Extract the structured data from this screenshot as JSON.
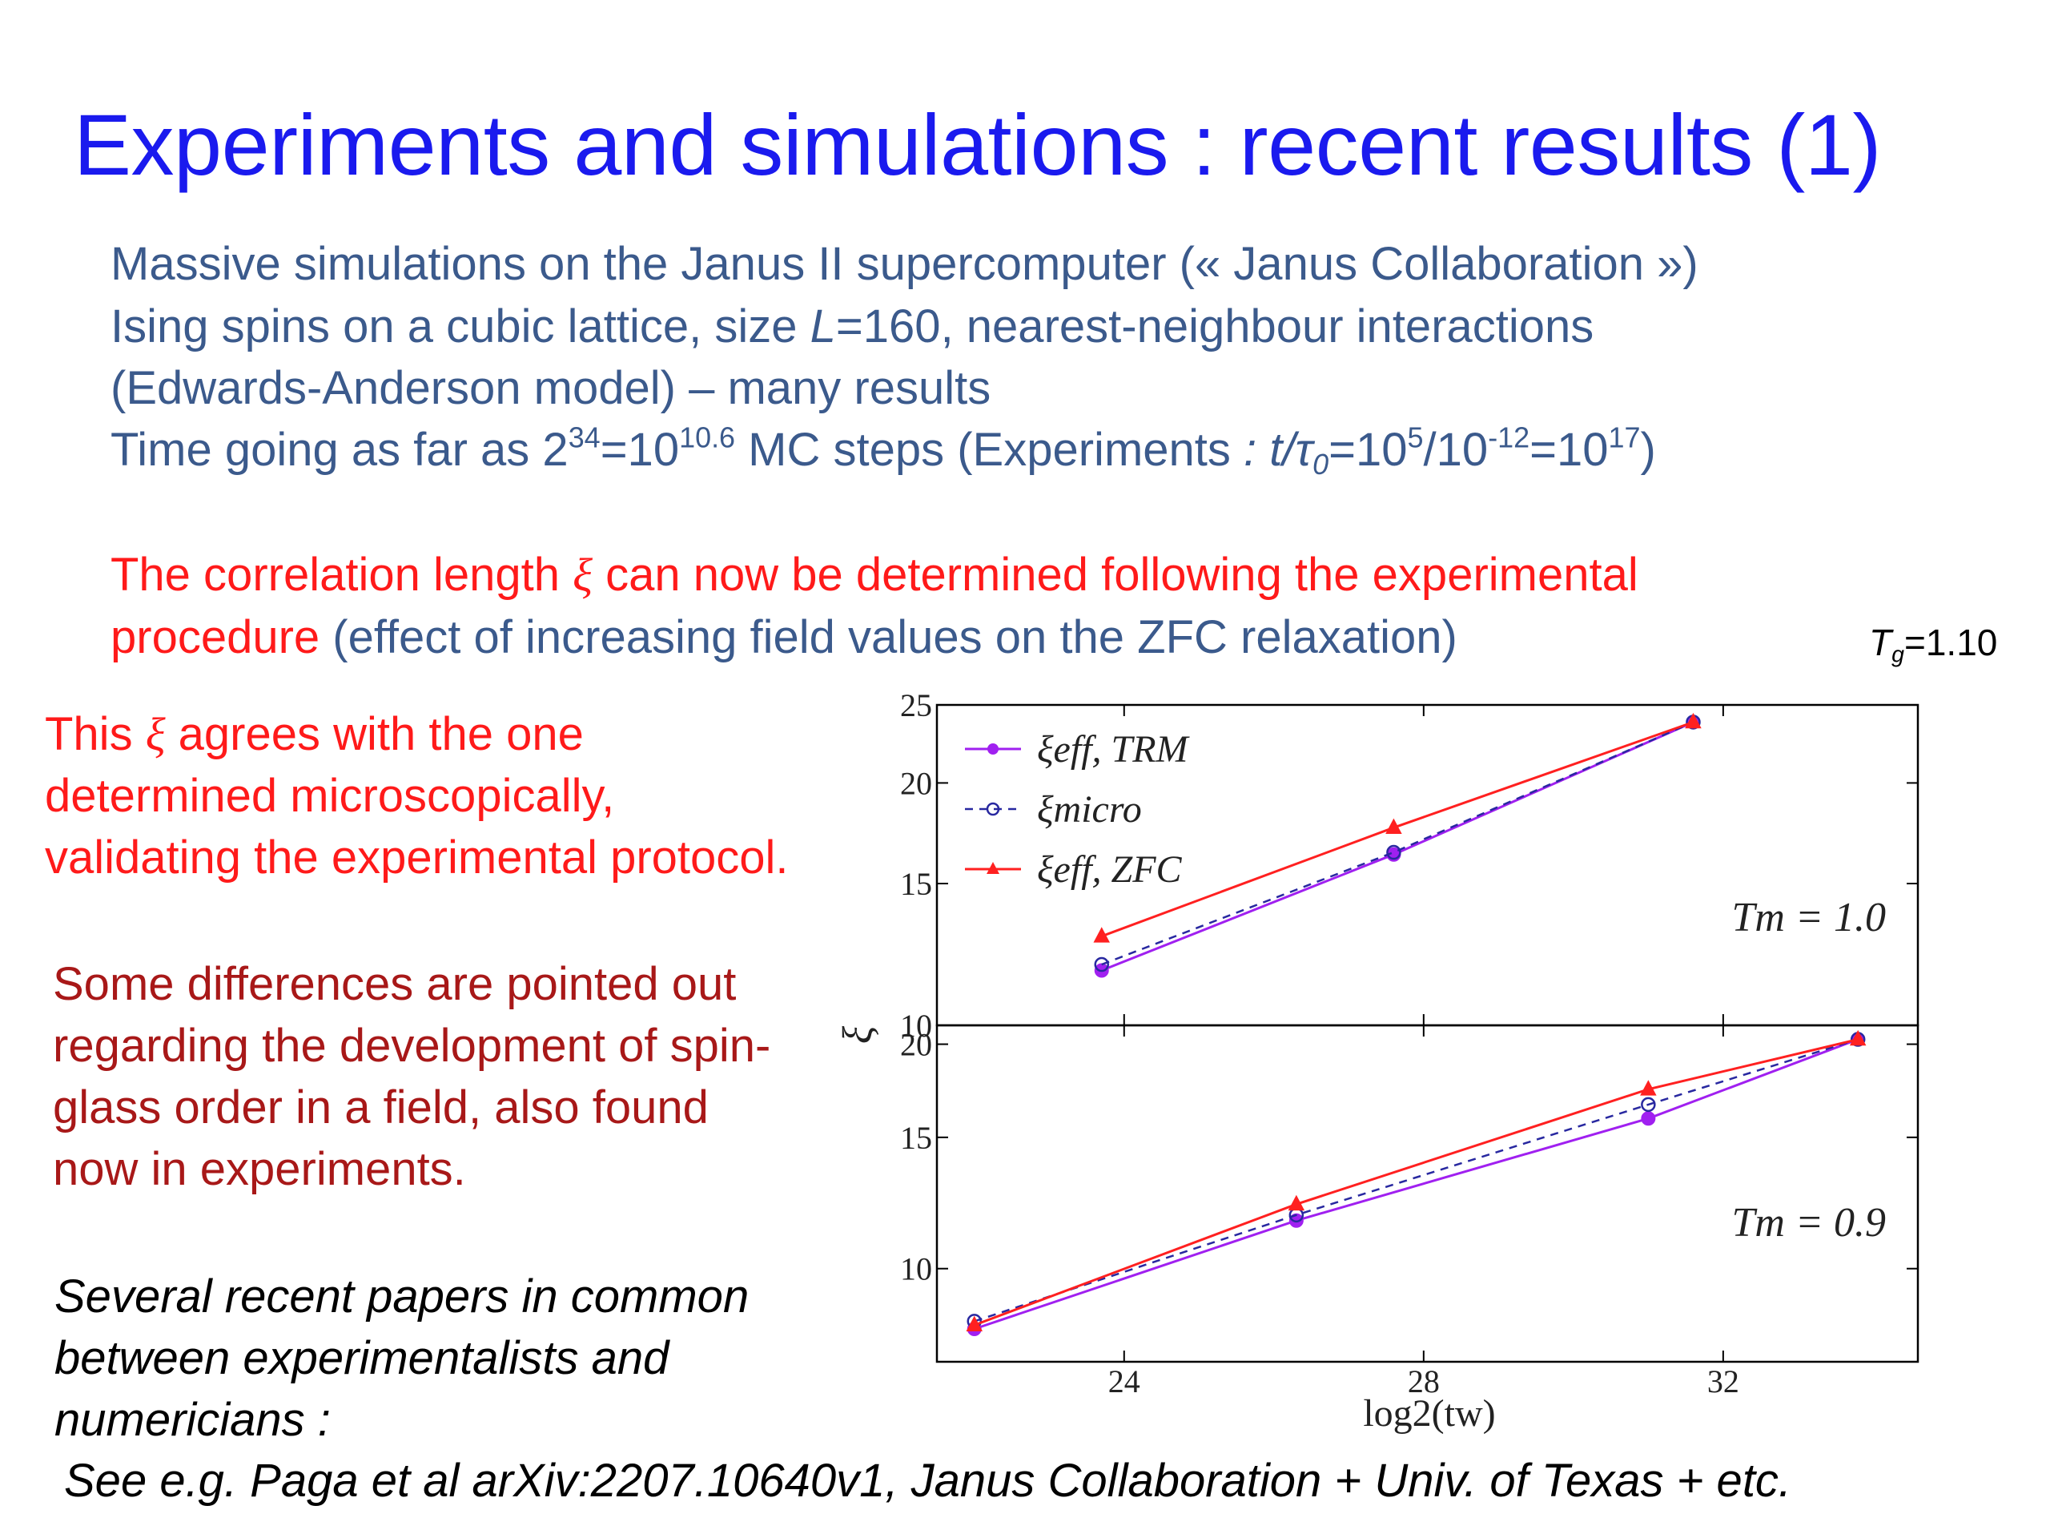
{
  "slide": {
    "title": "Experiments and simulations : recent results (1)",
    "intro": {
      "line1": "Massive simulations on the Janus II supercomputer (« Janus Collaboration »)",
      "line2_pre": "Ising spins on a cubic lattice, size ",
      "line2_var": "L",
      "line2_post": "=160, nearest-neighbour interactions",
      "line3": "(Edwards-Anderson model) – many results",
      "line4_a": "Time going as far as 2",
      "line4_sup1": "34",
      "line4_b": "=10",
      "line4_sup2": "10.6",
      "line4_c": " MC steps (Experiments",
      "line4_d": " : t/τ",
      "line4_sub": "0",
      "line4_e": "=10",
      "line4_sup3": "5",
      "line4_f": "/10",
      "line4_sup4": "-12",
      "line4_g": "=10",
      "line4_sup5": "17",
      "line4_h": ")"
    },
    "correlation": {
      "red1": "The correlation length ",
      "xi": "ξ",
      "red2": " can now be determined following the experimental",
      "red3": "procedure",
      "blue3": " (effect of increasing field values on the ZFC relaxation)"
    },
    "tg_label": {
      "T": "T",
      "sub": "g",
      "value": "=1.10"
    },
    "agree": {
      "line1_pre": "This ",
      "xi": "ξ",
      "line1_post": " agrees with the one",
      "line2": "determined microscopically,",
      "line3": "validating the experimental protocol."
    },
    "differences": [
      "Some differences are pointed out",
      "regarding the development of spin-",
      "glass order in a field, also found",
      "now in experiments."
    ],
    "papers": [
      "Several recent papers in common",
      "between experimentalists and",
      "numericians :"
    ],
    "reference": "See e.g. Paga et al arXiv:2207.10640v1, Janus Collaboration + Univ. of Texas + etc."
  },
  "chart_data": {
    "type": "line",
    "xlabel": "log2(tw)",
    "ylabel": "ξ",
    "x_ticks": [
      "24",
      "28",
      "32"
    ],
    "xlim": [
      21.5,
      34.6
    ],
    "colors": {
      "trm": "#a020f0",
      "micro": "#2828a0",
      "zfc": "#ff2020"
    },
    "legend": [
      {
        "key": "trm",
        "label": "ξeff, TRM"
      },
      {
        "key": "micro",
        "label": "ξmicro"
      },
      {
        "key": "zfc",
        "label": "ξeff, ZFC"
      }
    ],
    "panels": [
      {
        "annotation": "Tm = 1.0",
        "y_scale": "log",
        "ylim": [
          10,
          25
        ],
        "y_ticks": [
          "25",
          "20",
          "15",
          "10"
        ],
        "series": [
          {
            "key": "trm",
            "x": [
              23.7,
              27.6,
              31.6
            ],
            "y": [
              11.7,
              16.3,
              23.8
            ]
          },
          {
            "key": "micro",
            "x": [
              23.7,
              27.6,
              31.6
            ],
            "y": [
              11.9,
              16.4,
              23.8
            ]
          },
          {
            "key": "zfc",
            "x": [
              23.7,
              27.6,
              31.6
            ],
            "y": [
              12.9,
              17.6,
              23.8
            ]
          }
        ]
      },
      {
        "annotation": "Tm = 0.9",
        "y_scale": "log",
        "ylim": [
          7.5,
          21.2
        ],
        "y_ticks": [
          "20",
          "15",
          "10"
        ],
        "series": [
          {
            "key": "trm",
            "x": [
              22.0,
              26.3,
              31.0,
              33.8
            ],
            "y": [
              8.3,
              11.6,
              15.9,
              20.3
            ]
          },
          {
            "key": "micro",
            "x": [
              22.0,
              26.3,
              31.0,
              33.8
            ],
            "y": [
              8.5,
              11.8,
              16.6,
              20.3
            ]
          },
          {
            "key": "zfc",
            "x": [
              22.0,
              26.3,
              31.0,
              33.8
            ],
            "y": [
              8.4,
              12.2,
              17.4,
              20.3
            ]
          }
        ]
      }
    ]
  }
}
